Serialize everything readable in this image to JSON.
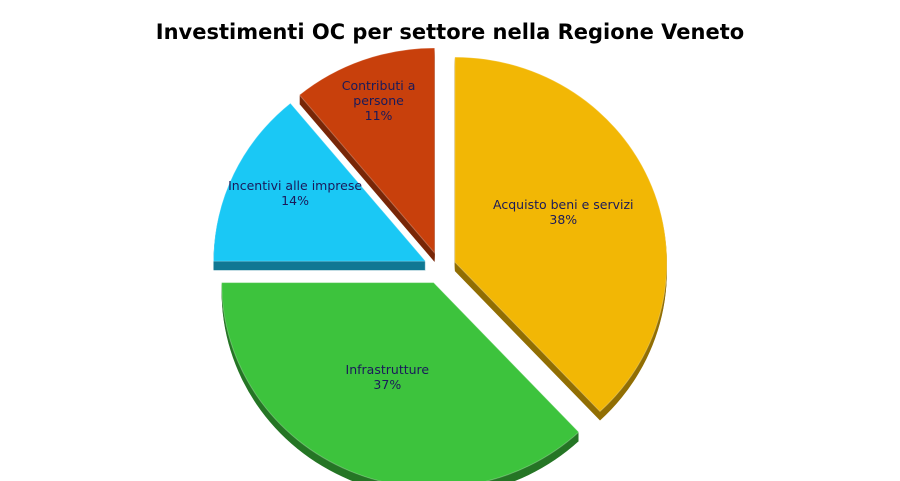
{
  "chart_data": {
    "type": "pie",
    "title": "Investimenti OC per settore nella Regione Veneto",
    "categories": [
      "Acquisto beni e servizi",
      "Infrastrutture",
      "Incentivi alle imprese",
      "Contributi a persone"
    ],
    "values": [
      38,
      37,
      14,
      11
    ],
    "value_labels": [
      "38%",
      "37%",
      "14%",
      "11%"
    ],
    "colors": [
      "#f2b705",
      "#3dc33d",
      "#1ac8f5",
      "#c8400c"
    ]
  }
}
